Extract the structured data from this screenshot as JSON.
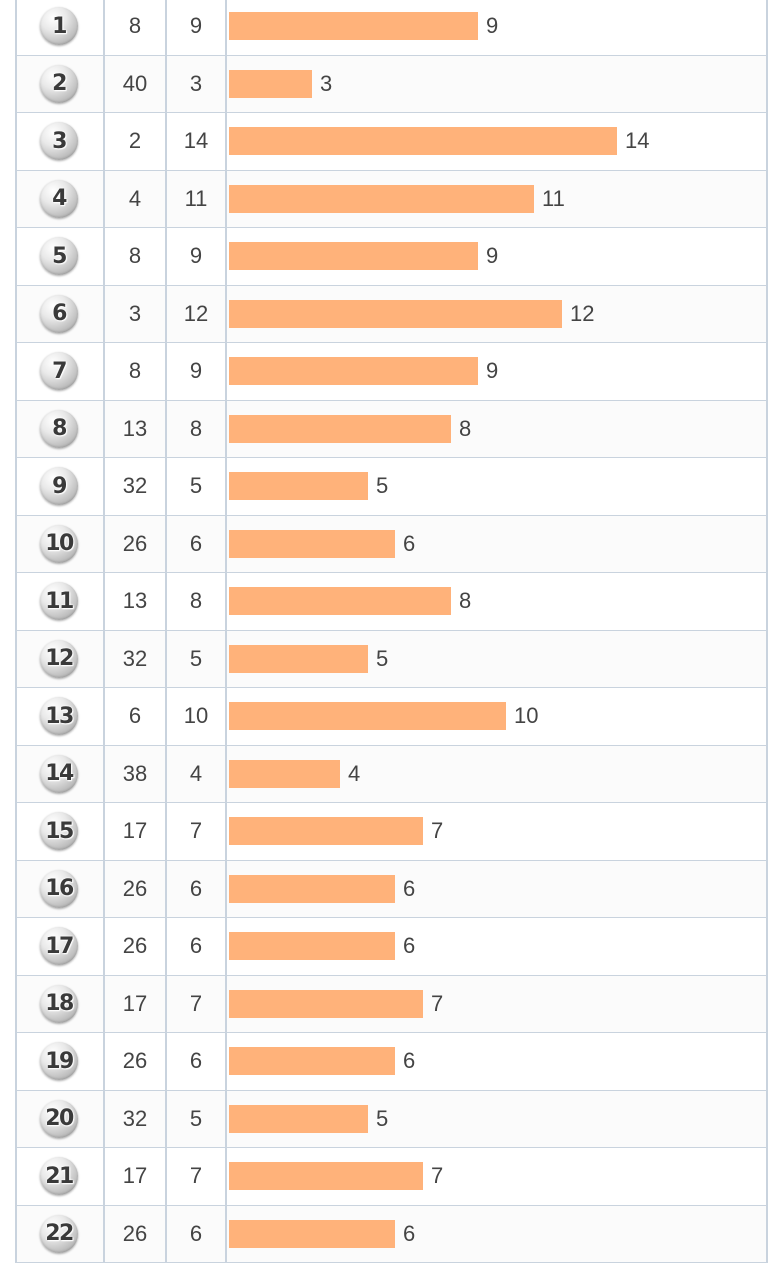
{
  "max_value": 14,
  "bar_color": "#ffb27a",
  "rows": [
    {
      "number": "1",
      "col_a": "8",
      "col_b": "9",
      "value": 9
    },
    {
      "number": "2",
      "col_a": "40",
      "col_b": "3",
      "value": 3
    },
    {
      "number": "3",
      "col_a": "2",
      "col_b": "14",
      "value": 14
    },
    {
      "number": "4",
      "col_a": "4",
      "col_b": "11",
      "value": 11
    },
    {
      "number": "5",
      "col_a": "8",
      "col_b": "9",
      "value": 9
    },
    {
      "number": "6",
      "col_a": "3",
      "col_b": "12",
      "value": 12
    },
    {
      "number": "7",
      "col_a": "8",
      "col_b": "9",
      "value": 9
    },
    {
      "number": "8",
      "col_a": "13",
      "col_b": "8",
      "value": 8
    },
    {
      "number": "9",
      "col_a": "32",
      "col_b": "5",
      "value": 5
    },
    {
      "number": "10",
      "col_a": "26",
      "col_b": "6",
      "value": 6
    },
    {
      "number": "11",
      "col_a": "13",
      "col_b": "8",
      "value": 8
    },
    {
      "number": "12",
      "col_a": "32",
      "col_b": "5",
      "value": 5
    },
    {
      "number": "13",
      "col_a": "6",
      "col_b": "10",
      "value": 10
    },
    {
      "number": "14",
      "col_a": "38",
      "col_b": "4",
      "value": 4
    },
    {
      "number": "15",
      "col_a": "17",
      "col_b": "7",
      "value": 7
    },
    {
      "number": "16",
      "col_a": "26",
      "col_b": "6",
      "value": 6
    },
    {
      "number": "17",
      "col_a": "26",
      "col_b": "6",
      "value": 6
    },
    {
      "number": "18",
      "col_a": "17",
      "col_b": "7",
      "value": 7
    },
    {
      "number": "19",
      "col_a": "26",
      "col_b": "6",
      "value": 6
    },
    {
      "number": "20",
      "col_a": "32",
      "col_b": "5",
      "value": 5
    },
    {
      "number": "21",
      "col_a": "17",
      "col_b": "7",
      "value": 7
    },
    {
      "number": "22",
      "col_a": "26",
      "col_b": "6",
      "value": 6
    }
  ]
}
